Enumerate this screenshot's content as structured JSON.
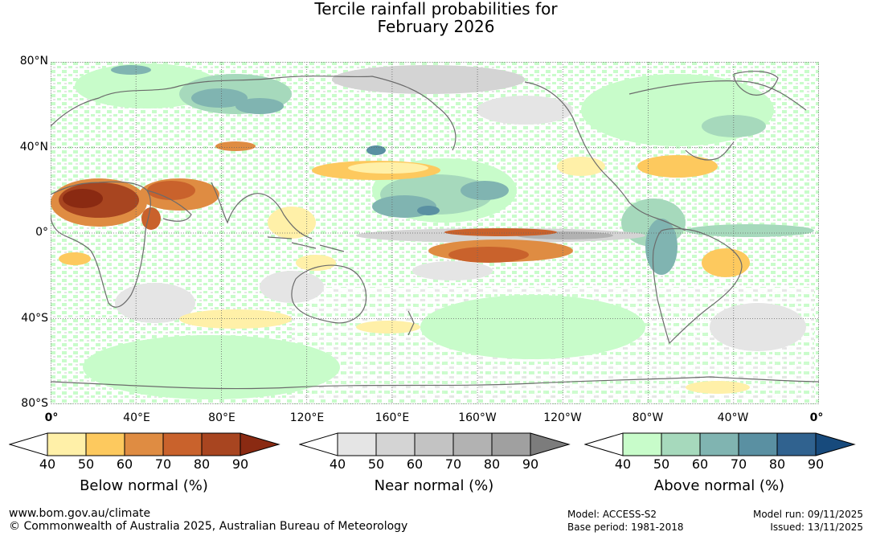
{
  "title": {
    "line1": "Tercile rainfall probabilities for",
    "line2": "February 2026"
  },
  "map": {
    "lat_labels": [
      "80°N",
      "40°N",
      "0°",
      "40°S",
      "80°S"
    ],
    "lon_labels": [
      "0°",
      "40°E",
      "80°E",
      "120°E",
      "160°E",
      "160°W",
      "120°W",
      "80°W",
      "40°W",
      "0°"
    ]
  },
  "colorbars": [
    {
      "name": "below",
      "label": "Below normal (%)",
      "ticks": [
        "40",
        "50",
        "60",
        "70",
        "80",
        "90"
      ],
      "colors": [
        "#fff0a8",
        "#fdc95e",
        "#df8c42",
        "#c9622c",
        "#a84520",
        "#8a2a12"
      ]
    },
    {
      "name": "near",
      "label": "Near normal (%)",
      "ticks": [
        "40",
        "50",
        "60",
        "70",
        "80",
        "90"
      ],
      "colors": [
        "#e5e5e5",
        "#d4d4d4",
        "#c3c3c3",
        "#b2b2b2",
        "#a0a0a0",
        "#7c7c7c"
      ]
    },
    {
      "name": "above",
      "label": "Above normal (%)",
      "ticks": [
        "40",
        "50",
        "60",
        "70",
        "80",
        "90"
      ],
      "colors": [
        "#c8fcca",
        "#a6d9bc",
        "#80b4b1",
        "#5a90a2",
        "#30628f",
        "#174a7c"
      ]
    }
  ],
  "footer": {
    "website": "www.bom.gov.au/climate",
    "copyright": "© Commonwealth of Australia 2025, Australian Bureau of Meteorology",
    "model": "Model: ACCESS-S2",
    "base_period": "Base period: 1981-2018",
    "model_run": "Model run: 09/11/2025",
    "issued": "Issued: 13/11/2025"
  }
}
